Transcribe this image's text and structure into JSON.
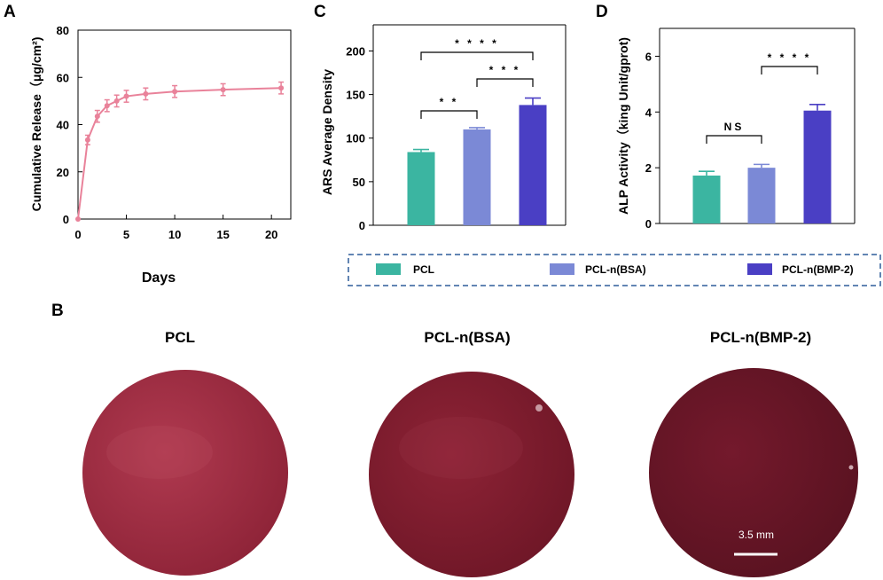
{
  "panels": {
    "a": "A",
    "b": "B",
    "c": "C",
    "d": "D"
  },
  "colors": {
    "release_line": "#e9829a",
    "pcl": "#3bb5a1",
    "pcl_bsa": "#7b89d6",
    "pcl_bmp2": "#4a3fc4",
    "legend_border": "#2f5d9a",
    "disc_pcl": "#9b2a3c",
    "disc_bsa": "#7d1a2c",
    "disc_bmp2": "#651626"
  },
  "legend": {
    "items": [
      {
        "label": "PCL",
        "color": "#3bb5a1"
      },
      {
        "label": "PCL-n(BSA)",
        "color": "#7b89d6"
      },
      {
        "label": "PCL-n(BMP-2)",
        "color": "#4a3fc4"
      }
    ]
  },
  "photos": {
    "titles": [
      "PCL",
      "PCL-n(BSA)",
      "PCL-n(BMP-2)"
    ],
    "scale_bar_label": "3.5 mm"
  },
  "chart_data": [
    {
      "id": "A",
      "type": "line",
      "title": "",
      "xlabel": "Days",
      "ylabel": "Cumulative Release（μg/cm²)",
      "x": [
        0,
        1,
        2,
        3,
        4,
        5,
        7,
        10,
        15,
        21
      ],
      "series": [
        {
          "name": "Cumulative Release",
          "values": [
            0,
            33.5,
            43.5,
            48,
            50,
            52,
            53,
            54,
            54.8,
            55.5
          ],
          "errors": [
            0,
            2,
            2.5,
            2.5,
            2.5,
            2.5,
            2.5,
            2.5,
            2.5,
            2.5
          ]
        }
      ],
      "xlim": [
        0,
        22
      ],
      "ylim": [
        0,
        80
      ],
      "xticks": [
        0,
        5,
        10,
        15,
        20
      ],
      "yticks": [
        0,
        20,
        40,
        60,
        80
      ]
    },
    {
      "id": "C",
      "type": "bar",
      "title": "",
      "xlabel": "",
      "ylabel": "ARS Average Density",
      "categories": [
        "PCL",
        "PCL-n(BSA)",
        "PCL-n(BMP-2)"
      ],
      "values": [
        84,
        110,
        138
      ],
      "errors": [
        3,
        2,
        8
      ],
      "ylim": [
        0,
        230
      ],
      "yticks": [
        0,
        50,
        100,
        150,
        200
      ],
      "significance": [
        {
          "from": 0,
          "to": 1,
          "label": "* *"
        },
        {
          "from": 1,
          "to": 2,
          "label": "* * *"
        },
        {
          "from": 0,
          "to": 2,
          "label": "* * * *"
        }
      ]
    },
    {
      "id": "D",
      "type": "bar",
      "title": "",
      "xlabel": "",
      "ylabel": "ALP Activity（king Unit/gprot)",
      "categories": [
        "PCL",
        "PCL-n(BSA)",
        "PCL-n(BMP-2)"
      ],
      "values": [
        1.72,
        2.0,
        4.05
      ],
      "errors": [
        0.15,
        0.12,
        0.22
      ],
      "ylim": [
        0,
        7
      ],
      "yticks": [
        0,
        2,
        4,
        6
      ],
      "significance": [
        {
          "from": 0,
          "to": 1,
          "label": "NS"
        },
        {
          "from": 1,
          "to": 2,
          "label": "* * * *"
        }
      ]
    }
  ]
}
